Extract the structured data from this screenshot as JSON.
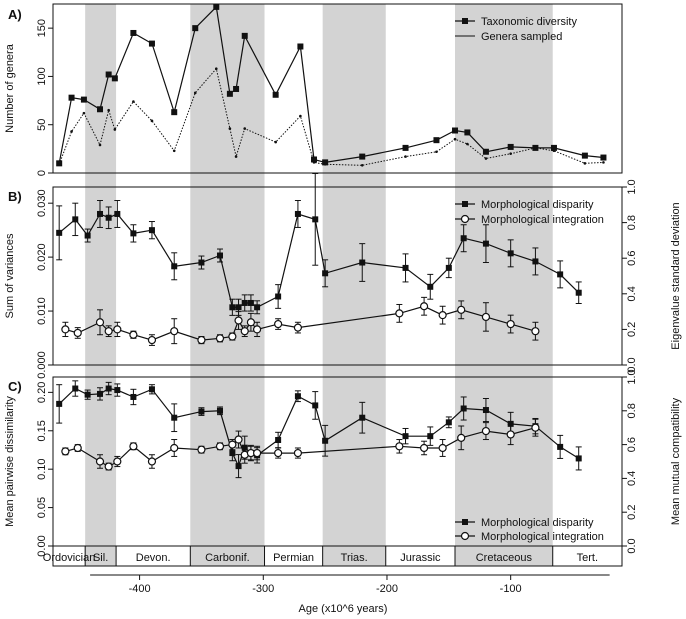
{
  "figure": {
    "x_axis_label": "Age (x10^6 years)",
    "x_ticks": [
      -400,
      -300,
      -200,
      -100
    ],
    "x_tick_labels": [
      "-400",
      "-300",
      "-200",
      "-100"
    ],
    "xlim": [
      -470,
      -10
    ],
    "shaded_periods": [
      [
        -444,
        -419
      ],
      [
        -359,
        -299
      ],
      [
        -252,
        -201
      ],
      [
        -145,
        -66
      ]
    ],
    "shade_color": "#d3d3d3",
    "periods": [
      {
        "label": "Ordovician",
        "start": -470,
        "end": -444
      },
      {
        "label": "Sil.",
        "start": -444,
        "end": -419
      },
      {
        "label": "Devon.",
        "start": -419,
        "end": -359
      },
      {
        "label": "Carbonif.",
        "start": -359,
        "end": -299
      },
      {
        "label": "Permian",
        "start": -299,
        "end": -252
      },
      {
        "label": "Trias.",
        "start": -252,
        "end": -201
      },
      {
        "label": "Jurassic",
        "start": -201,
        "end": -145
      },
      {
        "label": "Cretaceous",
        "start": -145,
        "end": -66
      },
      {
        "label": "Tert.",
        "start": -66,
        "end": -10
      }
    ]
  },
  "chart_data": [
    {
      "panel_label": "A)",
      "type": "line",
      "ylabel": "Number of genera",
      "ylim": [
        0,
        175
      ],
      "y_ticks": [
        0,
        50,
        100,
        150
      ],
      "legend_position": "top-right",
      "series": [
        {
          "name": "Taxonomic diversity",
          "marker": "filled-square",
          "style": "solid",
          "x": [
            -465,
            -455,
            -445,
            -432,
            -425,
            -420,
            -405,
            -390,
            -372,
            -355,
            -338,
            -327,
            -322,
            -315,
            -290,
            -270,
            -259,
            -250,
            -220,
            -185,
            -160,
            -145,
            -135,
            -120,
            -100,
            -80,
            -65,
            -40,
            -25
          ],
          "y": [
            10,
            78,
            76,
            66,
            102,
            98,
            145,
            134,
            63,
            150,
            172,
            82,
            87,
            142,
            81,
            131,
            14,
            11,
            17,
            26,
            34,
            44,
            42,
            22,
            27,
            26,
            26,
            18,
            16
          ]
        },
        {
          "name": "Genera sampled",
          "marker": "small-dot",
          "style": "dotted",
          "x": [
            -465,
            -455,
            -445,
            -432,
            -425,
            -420,
            -405,
            -390,
            -372,
            -355,
            -338,
            -327,
            -322,
            -315,
            -290,
            -270,
            -259,
            -250,
            -220,
            -185,
            -160,
            -145,
            -135,
            -120,
            -100,
            -80,
            -65,
            -40,
            -25
          ],
          "y": [
            9,
            43,
            62,
            29,
            65,
            45,
            74,
            54,
            23,
            83,
            108,
            46,
            17,
            46,
            32,
            59,
            11,
            9,
            8,
            17,
            22,
            35,
            30,
            15,
            20,
            26,
            23,
            10,
            11
          ]
        }
      ]
    },
    {
      "panel_label": "B)",
      "type": "line",
      "ylabel": "Sum of variances",
      "ylim": [
        0,
        0.033
      ],
      "y_ticks": [
        0,
        0.01,
        0.02,
        0.03
      ],
      "y_tick_labels": [
        "0.000",
        "0.010",
        "0.020",
        "0.030"
      ],
      "ylabel_right": "Eigenvalue standard deviation",
      "ylim_right": [
        0,
        1.0
      ],
      "y_ticks_right": [
        0,
        0.2,
        0.4,
        0.6,
        0.8,
        1.0
      ],
      "y_tick_labels_right": [
        "0.0",
        "0.2",
        "0.4",
        "0.6",
        "0.8",
        "1.0"
      ],
      "legend_position": "top-right",
      "series": [
        {
          "name": "Morphological disparity",
          "marker": "filled-square",
          "axis": "left",
          "x": [
            -465,
            -452,
            -442,
            -432,
            -425,
            -418,
            -405,
            -390,
            -372,
            -350,
            -335,
            -325,
            -320,
            -315,
            -310,
            -305,
            -288,
            -272,
            -258,
            -250,
            -220,
            -185,
            -165,
            -150,
            -138,
            -120,
            -100,
            -80,
            -60,
            -45
          ],
          "y": [
            0.0245,
            0.027,
            0.024,
            0.028,
            0.0273,
            0.028,
            0.0244,
            0.025,
            0.0183,
            0.019,
            0.0203,
            0.0107,
            0.0107,
            0.0115,
            0.0115,
            0.0107,
            0.0127,
            0.028,
            0.027,
            0.017,
            0.019,
            0.018,
            0.0145,
            0.018,
            0.0235,
            0.0225,
            0.0207,
            0.0192,
            0.0168,
            0.0134
          ],
          "err": [
            0.005,
            0.003,
            0.0012,
            0.0025,
            0.002,
            0.0025,
            0.0016,
            0.0016,
            0.0025,
            0.0012,
            0.0012,
            0.0015,
            0.0015,
            0.0015,
            0.0015,
            0.0012,
            0.0022,
            0.0025,
            0.0085,
            0.0025,
            0.0035,
            0.0026,
            0.0023,
            0.0018,
            0.0025,
            0.0035,
            0.0025,
            0.0025,
            0.0025,
            0.002
          ]
        },
        {
          "name": "Morphological integration",
          "marker": "open-circle",
          "axis": "right",
          "x": [
            -460,
            -450,
            -432,
            -425,
            -418,
            -405,
            -390,
            -372,
            -350,
            -335,
            -325,
            -320,
            -315,
            -310,
            -305,
            -288,
            -272,
            -190,
            -170,
            -155,
            -140,
            -120,
            -100,
            -80
          ],
          "y": [
            0.2,
            0.18,
            0.24,
            0.19,
            0.2,
            0.17,
            0.14,
            0.19,
            0.14,
            0.15,
            0.16,
            0.25,
            0.19,
            0.24,
            0.2,
            0.23,
            0.21,
            0.29,
            0.33,
            0.28,
            0.31,
            0.27,
            0.23,
            0.19
          ],
          "err": [
            0.04,
            0.03,
            0.07,
            0.03,
            0.04,
            0.02,
            0.03,
            0.07,
            0.02,
            0.02,
            0.02,
            0.05,
            0.03,
            0.05,
            0.04,
            0.03,
            0.03,
            0.05,
            0.05,
            0.05,
            0.05,
            0.08,
            0.05,
            0.05
          ]
        }
      ]
    },
    {
      "panel_label": "C)",
      "type": "line",
      "ylabel": "Mean pairwise dissimilarity",
      "ylim": [
        0,
        0.22
      ],
      "y_ticks": [
        0,
        0.05,
        0.1,
        0.15,
        0.2
      ],
      "y_tick_labels": [
        "0.00",
        "0.05",
        "0.10",
        "0.15",
        "0.20"
      ],
      "ylabel_right": "Mean mutual compatibility",
      "ylim_right": [
        0,
        1.0
      ],
      "y_ticks_right": [
        0,
        0.2,
        0.4,
        0.6,
        0.8,
        1.0
      ],
      "y_tick_labels_right": [
        "0.0",
        "0.2",
        "0.4",
        "0.6",
        "0.8",
        "1.0"
      ],
      "legend_position": "bottom-right",
      "series": [
        {
          "name": "Morphological disparity",
          "marker": "filled-square",
          "axis": "left",
          "x": [
            -465,
            -452,
            -442,
            -432,
            -425,
            -418,
            -405,
            -390,
            -372,
            -350,
            -335,
            -325,
            -320,
            -315,
            -310,
            -305,
            -288,
            -272,
            -258,
            -250,
            -220,
            -185,
            -165,
            -150,
            -138,
            -120,
            -100,
            -80,
            -60,
            -45
          ],
          "y": [
            0.185,
            0.205,
            0.197,
            0.198,
            0.205,
            0.203,
            0.194,
            0.204,
            0.167,
            0.175,
            0.176,
            0.121,
            0.104,
            0.128,
            0.121,
            0.118,
            0.138,
            0.195,
            0.183,
            0.137,
            0.167,
            0.143,
            0.143,
            0.161,
            0.179,
            0.177,
            0.159,
            0.156,
            0.129,
            0.114
          ],
          "err": [
            0.025,
            0.01,
            0.006,
            0.008,
            0.008,
            0.008,
            0.01,
            0.006,
            0.018,
            0.005,
            0.005,
            0.01,
            0.015,
            0.015,
            0.01,
            0.01,
            0.01,
            0.007,
            0.018,
            0.02,
            0.02,
            0.01,
            0.012,
            0.007,
            0.015,
            0.015,
            0.015,
            0.01,
            0.015,
            0.015
          ]
        },
        {
          "name": "Morphological integration",
          "marker": "open-circle",
          "axis": "right",
          "x": [
            -460,
            -450,
            -432,
            -425,
            -418,
            -405,
            -390,
            -372,
            -350,
            -335,
            -325,
            -320,
            -315,
            -310,
            -305,
            -288,
            -272,
            -190,
            -170,
            -155,
            -140,
            -120,
            -100,
            -80
          ],
          "y": [
            0.56,
            0.58,
            0.5,
            0.47,
            0.5,
            0.59,
            0.5,
            0.58,
            0.57,
            0.59,
            0.6,
            0.63,
            0.54,
            0.55,
            0.55,
            0.55,
            0.55,
            0.59,
            0.58,
            0.58,
            0.64,
            0.68,
            0.66,
            0.7
          ],
          "err": [
            0.02,
            0.02,
            0.04,
            0.02,
            0.03,
            0.02,
            0.04,
            0.05,
            0.02,
            0.02,
            0.03,
            0.05,
            0.05,
            0.04,
            0.04,
            0.03,
            0.03,
            0.04,
            0.04,
            0.05,
            0.07,
            0.05,
            0.06,
            0.05
          ]
        }
      ]
    }
  ]
}
